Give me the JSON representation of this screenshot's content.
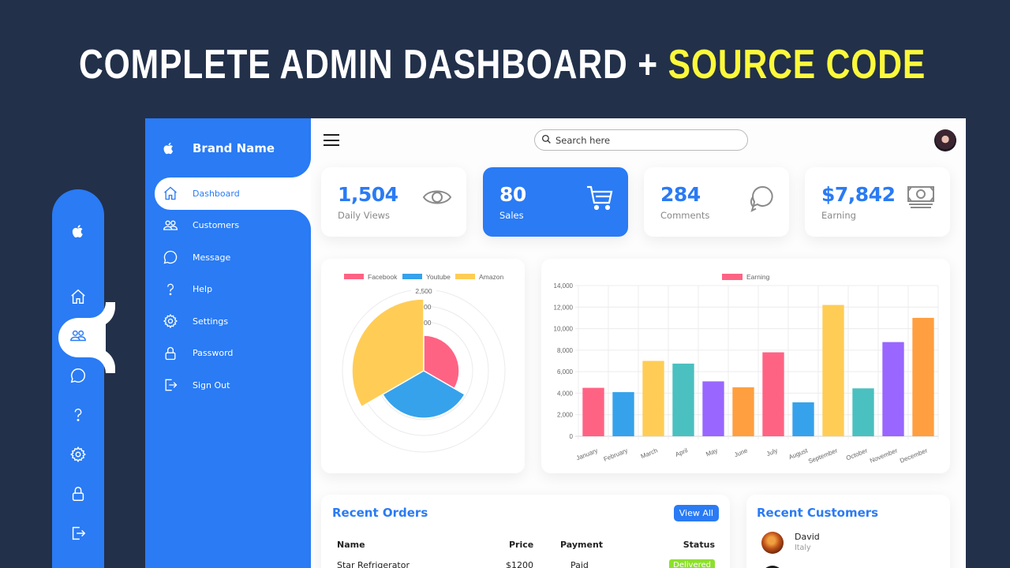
{
  "headline": {
    "main": "COMPLETE ADMIN DASHBOARD + ",
    "accent": "SOURCE CODE"
  },
  "colors": {
    "primary": "#2a7bf4",
    "background": "#22304a",
    "accent": "#fcf93b",
    "delivered": "#8de02c"
  },
  "mini_sidebar": {
    "icons": [
      "apple-logo-icon",
      "home-icon",
      "customers-icon",
      "message-icon",
      "help-icon",
      "settings-icon",
      "lock-icon",
      "sign-out-icon"
    ],
    "active_index": 2
  },
  "sidebar": {
    "brand": "Brand Name",
    "items": [
      {
        "label": "Dashboard",
        "icon": "home-icon",
        "active": true
      },
      {
        "label": "Customers",
        "icon": "customers-icon"
      },
      {
        "label": "Message",
        "icon": "message-icon"
      },
      {
        "label": "Help",
        "icon": "help-icon"
      },
      {
        "label": "Settings",
        "icon": "settings-icon"
      },
      {
        "label": "Password",
        "icon": "lock-icon"
      },
      {
        "label": "Sign Out",
        "icon": "sign-out-icon"
      }
    ]
  },
  "topbar": {
    "search_placeholder": "Search here"
  },
  "stats": [
    {
      "value": "1,504",
      "label": "Daily Views",
      "icon": "eye-icon"
    },
    {
      "value": "80",
      "label": "Sales",
      "icon": "cart-icon",
      "highlighted": true
    },
    {
      "value": "284",
      "label": "Comments",
      "icon": "chat-icon"
    },
    {
      "value": "$7,842",
      "label": "Earning",
      "icon": "cash-icon"
    }
  ],
  "chart_data": [
    {
      "type": "polarArea",
      "title": "",
      "categories": [
        "Facebook",
        "Youtube",
        "Amazon"
      ],
      "values": [
        1100,
        1500,
        2200
      ],
      "colors": [
        "#ff6384",
        "#36a2eb",
        "#ffcd56"
      ],
      "legend": [
        "Facebook",
        "Youtube",
        "Amazon"
      ],
      "legend_position": "top",
      "radial_ticks": [
        "2,500",
        "00",
        "00"
      ],
      "rmax": 2500
    },
    {
      "type": "bar",
      "title": "",
      "legend": [
        "Earning"
      ],
      "legend_position": "top",
      "categories": [
        "January",
        "February",
        "March",
        "April",
        "May",
        "June",
        "July",
        "August",
        "September",
        "October",
        "November",
        "December"
      ],
      "values": [
        4500,
        4100,
        7000,
        6750,
        5100,
        4550,
        7800,
        3150,
        12200,
        4450,
        8750,
        11000
      ],
      "colors": [
        "#ff6384",
        "#36a2eb",
        "#ffcd56",
        "#4bc0c0",
        "#9966ff",
        "#ff9f40",
        "#ff6384",
        "#36a2eb",
        "#ffcd56",
        "#4bc0c0",
        "#9966ff",
        "#ff9f40"
      ],
      "yticks": [
        "0",
        "2,000",
        "4,000",
        "6,000",
        "8,000",
        "10,000",
        "12,000",
        "14,000"
      ],
      "ylim": [
        0,
        14000
      ],
      "grid": true
    }
  ],
  "orders": {
    "title": "Recent Orders",
    "view_all": "View All",
    "columns": [
      "Name",
      "Price",
      "Payment",
      "Status"
    ],
    "rows": [
      {
        "name": "Star Refrigerator",
        "price": "$1200",
        "payment": "Paid",
        "status": "Delivered"
      }
    ]
  },
  "customers": {
    "title": "Recent Customers",
    "items": [
      {
        "name": "David",
        "country": "Italy"
      }
    ]
  }
}
